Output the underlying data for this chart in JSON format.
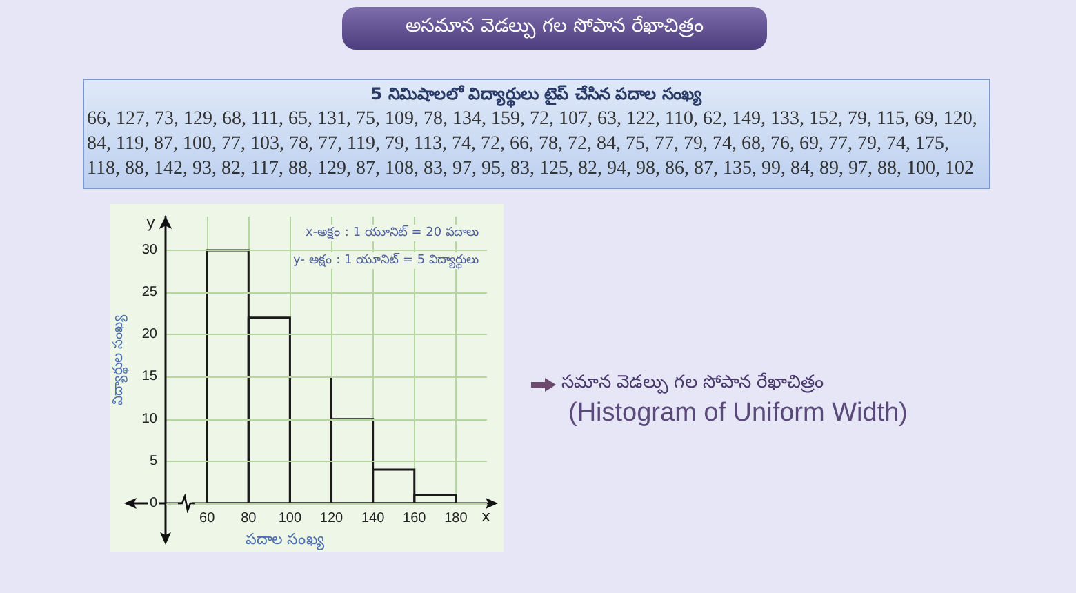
{
  "chart_data": {
    "type": "histogram",
    "title": "అసమాన వెడల్పు గల సోపాన రేఖాచిత్రం",
    "subtitle": "5 నిమిషాలలో విద్యార్థులు టైప్ చేసిన పదాల సంఖ్య",
    "xlabel": "పదాల సంఖ్య",
    "ylabel": "విద్యార్థుల సంఖ్య",
    "bins": [
      60,
      80,
      100,
      120,
      140,
      160,
      180
    ],
    "values": [
      30,
      22,
      15,
      10,
      4,
      1
    ],
    "color": "#1a1a1a",
    "xlim": [
      40,
      195
    ],
    "ylim": [
      0,
      34
    ],
    "xticks": [
      60,
      80,
      100,
      120,
      140,
      160,
      180
    ],
    "yticks": [
      0,
      5,
      10,
      15,
      20,
      25,
      30
    ],
    "grid": true,
    "annotations": [
      "66, 127, 73, 129, 68, 111, 65, 131, 75, 109, 78, 134, 159, 72, 107, 63, 122, 110, 62, 149, 133, 152, 79, 115, 69, 120,",
      "84, 119, 87, 100, 77, 103, 78, 77, 119, 79, 113, 74, 72, 66, 78, 72, 84, 75, 77, 79, 74, 68, 76, 69, 77, 79, 74, 175,",
      "118, 88, 142, 93, 82, 117, 88, 129, 87, 108, 83, 97, 95, 83, 125, 82, 94, 98, 86, 87, 135, 99, 84, 89, 97, 88, 100, 102",
      "x-అక్షం : 1 యూనిట్ = 20 పదాలు",
      "y- అక్షం : 1 యూనిట్ = 5 విద్యార్థులు",
      "x",
      "y",
      "సమాన వెడల్పు గల సోపాన రేఖాచిత్రం",
      "(Histogram of Uniform Width)"
    ]
  }
}
